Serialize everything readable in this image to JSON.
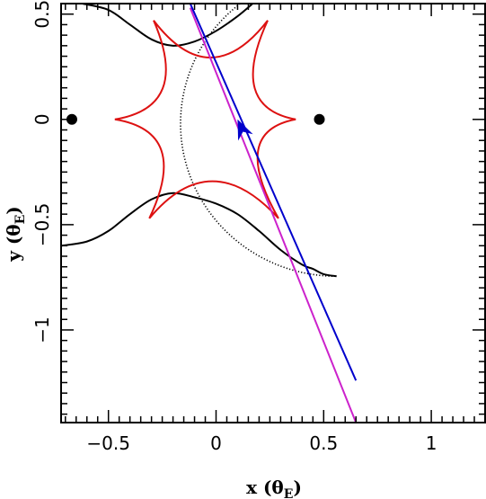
{
  "chart_data": {
    "type": "scatter",
    "title": "",
    "xlabel": "x (θ",
    "xlabel_sub": "E",
    "xlabel_close": ")",
    "ylabel": "y (θ",
    "ylabel_sub": "E",
    "ylabel_close": ")",
    "xlim": [
      -0.72,
      1.25
    ],
    "ylim": [
      -1.44,
      0.55
    ],
    "x_ticks": [
      {
        "value": -0.5,
        "label": "−0.5"
      },
      {
        "value": 0,
        "label": "0"
      },
      {
        "value": 0.5,
        "label": "0.5"
      },
      {
        "value": 1,
        "label": "1"
      }
    ],
    "y_ticks": [
      {
        "value": 0.5,
        "label": "0.5"
      },
      {
        "value": 0,
        "label": "0"
      },
      {
        "value": -0.5,
        "label": "−0.5"
      },
      {
        "value": -1,
        "label": "−1"
      }
    ],
    "grid": false,
    "lens_points": [
      {
        "x": -0.67,
        "y": 0.0
      },
      {
        "x": 0.48,
        "y": 0.0
      }
    ],
    "caustic": {
      "color": "#dd1111",
      "cusps": [
        {
          "x": -0.47,
          "y": 0.0
        },
        {
          "x": -0.29,
          "y": 0.47
        },
        {
          "x": 0.24,
          "y": 0.47
        },
        {
          "x": 0.37,
          "y": 0.0
        },
        {
          "x": 0.29,
          "y": -0.47
        },
        {
          "x": -0.31,
          "y": -0.47
        }
      ]
    },
    "critical_curve_upper": {
      "color": "#000000",
      "points": [
        {
          "x": -0.62,
          "y": 0.55
        },
        {
          "x": -0.5,
          "y": 0.52
        },
        {
          "x": -0.4,
          "y": 0.45
        },
        {
          "x": -0.3,
          "y": 0.38
        },
        {
          "x": -0.2,
          "y": 0.35
        },
        {
          "x": -0.1,
          "y": 0.37
        },
        {
          "x": 0.0,
          "y": 0.42
        },
        {
          "x": 0.1,
          "y": 0.49
        },
        {
          "x": 0.17,
          "y": 0.55
        }
      ]
    },
    "critical_curve_lower": {
      "color": "#000000",
      "points": [
        {
          "x": -0.72,
          "y": -0.6
        },
        {
          "x": -0.6,
          "y": -0.58
        },
        {
          "x": -0.5,
          "y": -0.53
        },
        {
          "x": -0.4,
          "y": -0.45
        },
        {
          "x": -0.3,
          "y": -0.38
        },
        {
          "x": -0.2,
          "y": -0.35
        },
        {
          "x": -0.1,
          "y": -0.37
        },
        {
          "x": 0.0,
          "y": -0.4
        },
        {
          "x": 0.1,
          "y": -0.45
        },
        {
          "x": 0.2,
          "y": -0.53
        },
        {
          "x": 0.3,
          "y": -0.62
        },
        {
          "x": 0.4,
          "y": -0.69
        },
        {
          "x": 0.45,
          "y": -0.71
        },
        {
          "x": 0.5,
          "y": -0.735
        },
        {
          "x": 0.56,
          "y": -0.745
        }
      ]
    },
    "dotted_circle": {
      "color": "#000000",
      "center": {
        "x": 0.56,
        "y": -0.02
      },
      "radius": 0.725,
      "start_deg": 63,
      "end_deg": 270
    },
    "source_trajectory": {
      "color": "#0000cc",
      "from": {
        "x": -0.12,
        "y": 0.55
      },
      "to": {
        "x": 0.65,
        "y": -1.24
      },
      "arrow_at": {
        "x": 0.1,
        "y": 0.0
      }
    },
    "alt_trajectory": {
      "color": "#cc22cc",
      "from": {
        "x": -0.12,
        "y": 0.53
      },
      "to": {
        "x": 0.65,
        "y": -1.44
      }
    }
  }
}
